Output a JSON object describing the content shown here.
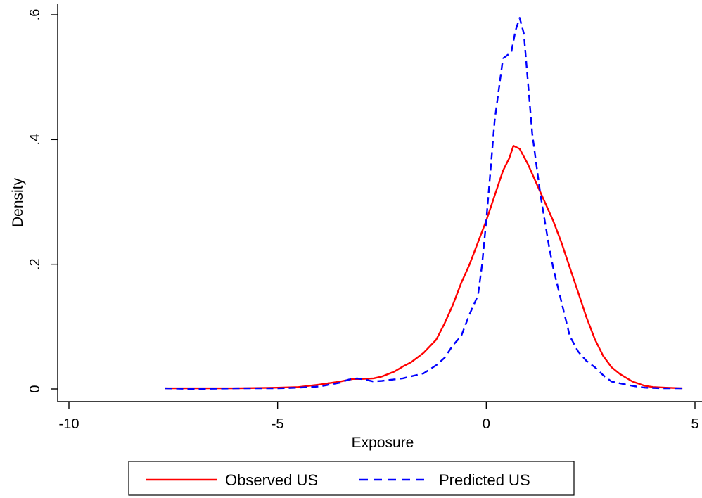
{
  "chart_data": {
    "type": "line",
    "title": "",
    "xlabel": "Exposure",
    "ylabel": "Density",
    "xlim": [
      -10,
      5
    ],
    "ylim": [
      0,
      0.6
    ],
    "x_ticks": [
      -10,
      -5,
      0,
      5
    ],
    "x_tick_labels": [
      "-10",
      "-5",
      "0",
      "5"
    ],
    "y_ticks": [
      0,
      0.2,
      0.4,
      0.6
    ],
    "y_tick_labels": [
      "0",
      ".2",
      ".4",
      ".6"
    ],
    "grid": false,
    "legend_position": "bottom",
    "series": [
      {
        "name": "Observed US",
        "color": "#ff0000",
        "style": "solid",
        "x": [
          -7.7,
          -7.0,
          -6.0,
          -5.0,
          -4.5,
          -4.0,
          -3.5,
          -3.2,
          -3.0,
          -2.7,
          -2.5,
          -2.2,
          -2.0,
          -1.8,
          -1.5,
          -1.2,
          -1.0,
          -0.8,
          -0.6,
          -0.4,
          -0.2,
          0.0,
          0.2,
          0.4,
          0.55,
          0.65,
          0.8,
          1.0,
          1.2,
          1.4,
          1.6,
          1.8,
          2.0,
          2.2,
          2.4,
          2.6,
          2.8,
          3.0,
          3.2,
          3.5,
          3.8,
          4.0,
          4.3,
          4.7
        ],
        "y": [
          0.001,
          0.001,
          0.001,
          0.002,
          0.003,
          0.007,
          0.012,
          0.016,
          0.016,
          0.017,
          0.02,
          0.028,
          0.036,
          0.043,
          0.058,
          0.079,
          0.105,
          0.135,
          0.17,
          0.2,
          0.235,
          0.27,
          0.31,
          0.35,
          0.37,
          0.39,
          0.385,
          0.36,
          0.33,
          0.3,
          0.27,
          0.235,
          0.195,
          0.155,
          0.115,
          0.08,
          0.053,
          0.035,
          0.024,
          0.012,
          0.005,
          0.003,
          0.002,
          0.001
        ]
      },
      {
        "name": "Predicted US",
        "color": "#0000ff",
        "style": "dashed",
        "x": [
          -7.7,
          -7.0,
          -6.0,
          -5.0,
          -4.5,
          -4.0,
          -3.5,
          -3.3,
          -3.1,
          -2.9,
          -2.7,
          -2.5,
          -2.0,
          -1.5,
          -1.2,
          -1.0,
          -0.8,
          -0.6,
          -0.4,
          -0.2,
          -0.1,
          0.0,
          0.1,
          0.2,
          0.3,
          0.4,
          0.5,
          0.6,
          0.7,
          0.8,
          0.9,
          1.0,
          1.1,
          1.2,
          1.3,
          1.4,
          1.5,
          1.6,
          1.8,
          2.0,
          2.2,
          2.4,
          2.6,
          2.8,
          3.0,
          3.2,
          3.5,
          3.8,
          4.2,
          4.7
        ],
        "y": [
          0.001,
          0.0,
          0.001,
          0.001,
          0.002,
          0.004,
          0.01,
          0.015,
          0.017,
          0.015,
          0.012,
          0.013,
          0.017,
          0.025,
          0.038,
          0.05,
          0.07,
          0.085,
          0.12,
          0.15,
          0.2,
          0.27,
          0.35,
          0.43,
          0.48,
          0.53,
          0.535,
          0.54,
          0.575,
          0.595,
          0.57,
          0.49,
          0.41,
          0.36,
          0.31,
          0.27,
          0.23,
          0.195,
          0.14,
          0.085,
          0.06,
          0.045,
          0.035,
          0.022,
          0.012,
          0.009,
          0.005,
          0.002,
          0.001,
          0.001
        ]
      }
    ]
  }
}
